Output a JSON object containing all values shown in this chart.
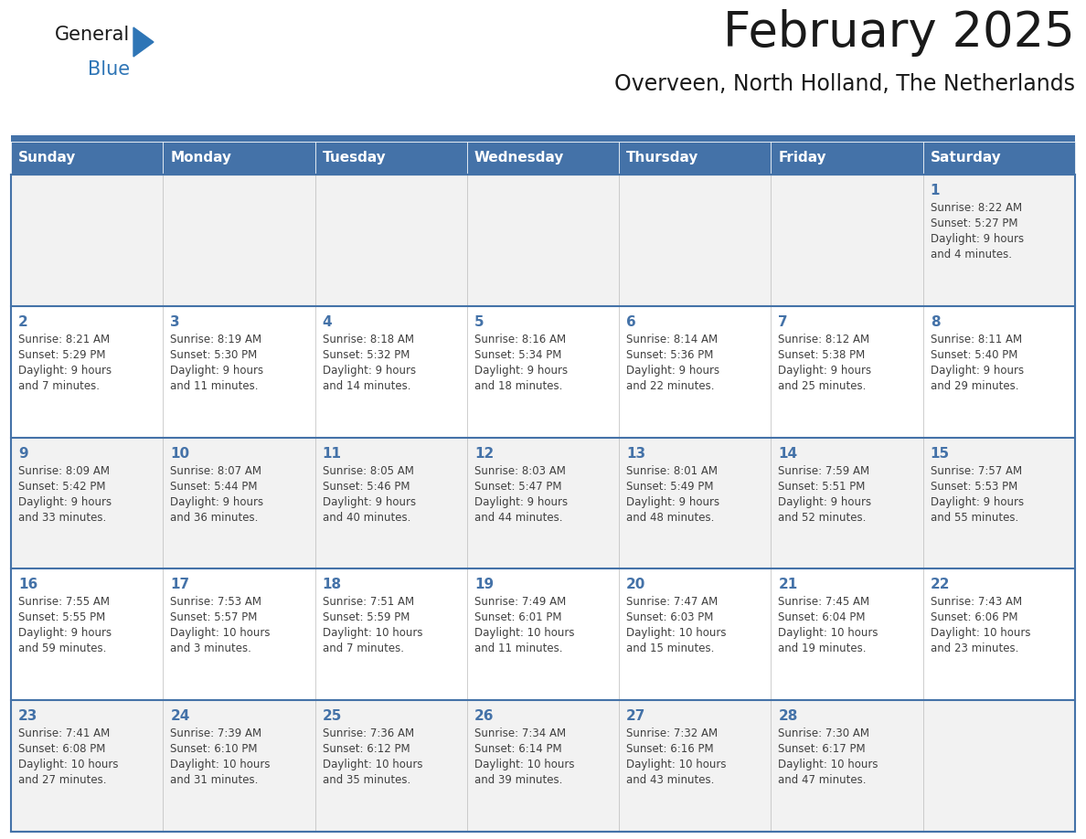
{
  "title": "February 2025",
  "subtitle": "Overveen, North Holland, The Netherlands",
  "days_of_week": [
    "Sunday",
    "Monday",
    "Tuesday",
    "Wednesday",
    "Thursday",
    "Friday",
    "Saturday"
  ],
  "header_bg_color": "#4472a8",
  "header_text_color": "#ffffff",
  "cell_bg_light": "#f2f2f2",
  "cell_bg_white": "#ffffff",
  "separator_color": "#4472a8",
  "title_color": "#1a1a1a",
  "subtitle_color": "#1a1a1a",
  "day_number_color": "#4472a8",
  "cell_text_color": "#404040",
  "logo_general_color": "#1a1a1a",
  "logo_blue_color": "#2E75B6",
  "weeks": [
    {
      "row": 0,
      "bg": "#f2f2f2",
      "days": [
        {
          "day": null,
          "col": 0
        },
        {
          "day": null,
          "col": 1
        },
        {
          "day": null,
          "col": 2
        },
        {
          "day": null,
          "col": 3
        },
        {
          "day": null,
          "col": 4
        },
        {
          "day": null,
          "col": 5
        },
        {
          "day": 1,
          "col": 6,
          "sunrise": "8:22 AM",
          "sunset": "5:27 PM",
          "daylight": "9 hours and 4 minutes."
        }
      ]
    },
    {
      "row": 1,
      "bg": "#ffffff",
      "days": [
        {
          "day": 2,
          "col": 0,
          "sunrise": "8:21 AM",
          "sunset": "5:29 PM",
          "daylight": "9 hours and 7 minutes."
        },
        {
          "day": 3,
          "col": 1,
          "sunrise": "8:19 AM",
          "sunset": "5:30 PM",
          "daylight": "9 hours and 11 minutes."
        },
        {
          "day": 4,
          "col": 2,
          "sunrise": "8:18 AM",
          "sunset": "5:32 PM",
          "daylight": "9 hours and 14 minutes."
        },
        {
          "day": 5,
          "col": 3,
          "sunrise": "8:16 AM",
          "sunset": "5:34 PM",
          "daylight": "9 hours and 18 minutes."
        },
        {
          "day": 6,
          "col": 4,
          "sunrise": "8:14 AM",
          "sunset": "5:36 PM",
          "daylight": "9 hours and 22 minutes."
        },
        {
          "day": 7,
          "col": 5,
          "sunrise": "8:12 AM",
          "sunset": "5:38 PM",
          "daylight": "9 hours and 25 minutes."
        },
        {
          "day": 8,
          "col": 6,
          "sunrise": "8:11 AM",
          "sunset": "5:40 PM",
          "daylight": "9 hours and 29 minutes."
        }
      ]
    },
    {
      "row": 2,
      "bg": "#f2f2f2",
      "days": [
        {
          "day": 9,
          "col": 0,
          "sunrise": "8:09 AM",
          "sunset": "5:42 PM",
          "daylight": "9 hours and 33 minutes."
        },
        {
          "day": 10,
          "col": 1,
          "sunrise": "8:07 AM",
          "sunset": "5:44 PM",
          "daylight": "9 hours and 36 minutes."
        },
        {
          "day": 11,
          "col": 2,
          "sunrise": "8:05 AM",
          "sunset": "5:46 PM",
          "daylight": "9 hours and 40 minutes."
        },
        {
          "day": 12,
          "col": 3,
          "sunrise": "8:03 AM",
          "sunset": "5:47 PM",
          "daylight": "9 hours and 44 minutes."
        },
        {
          "day": 13,
          "col": 4,
          "sunrise": "8:01 AM",
          "sunset": "5:49 PM",
          "daylight": "9 hours and 48 minutes."
        },
        {
          "day": 14,
          "col": 5,
          "sunrise": "7:59 AM",
          "sunset": "5:51 PM",
          "daylight": "9 hours and 52 minutes."
        },
        {
          "day": 15,
          "col": 6,
          "sunrise": "7:57 AM",
          "sunset": "5:53 PM",
          "daylight": "9 hours and 55 minutes."
        }
      ]
    },
    {
      "row": 3,
      "bg": "#ffffff",
      "days": [
        {
          "day": 16,
          "col": 0,
          "sunrise": "7:55 AM",
          "sunset": "5:55 PM",
          "daylight": "9 hours and 59 minutes."
        },
        {
          "day": 17,
          "col": 1,
          "sunrise": "7:53 AM",
          "sunset": "5:57 PM",
          "daylight": "10 hours and 3 minutes."
        },
        {
          "day": 18,
          "col": 2,
          "sunrise": "7:51 AM",
          "sunset": "5:59 PM",
          "daylight": "10 hours and 7 minutes."
        },
        {
          "day": 19,
          "col": 3,
          "sunrise": "7:49 AM",
          "sunset": "6:01 PM",
          "daylight": "10 hours and 11 minutes."
        },
        {
          "day": 20,
          "col": 4,
          "sunrise": "7:47 AM",
          "sunset": "6:03 PM",
          "daylight": "10 hours and 15 minutes."
        },
        {
          "day": 21,
          "col": 5,
          "sunrise": "7:45 AM",
          "sunset": "6:04 PM",
          "daylight": "10 hours and 19 minutes."
        },
        {
          "day": 22,
          "col": 6,
          "sunrise": "7:43 AM",
          "sunset": "6:06 PM",
          "daylight": "10 hours and 23 minutes."
        }
      ]
    },
    {
      "row": 4,
      "bg": "#f2f2f2",
      "days": [
        {
          "day": 23,
          "col": 0,
          "sunrise": "7:41 AM",
          "sunset": "6:08 PM",
          "daylight": "10 hours and 27 minutes."
        },
        {
          "day": 24,
          "col": 1,
          "sunrise": "7:39 AM",
          "sunset": "6:10 PM",
          "daylight": "10 hours and 31 minutes."
        },
        {
          "day": 25,
          "col": 2,
          "sunrise": "7:36 AM",
          "sunset": "6:12 PM",
          "daylight": "10 hours and 35 minutes."
        },
        {
          "day": 26,
          "col": 3,
          "sunrise": "7:34 AM",
          "sunset": "6:14 PM",
          "daylight": "10 hours and 39 minutes."
        },
        {
          "day": 27,
          "col": 4,
          "sunrise": "7:32 AM",
          "sunset": "6:16 PM",
          "daylight": "10 hours and 43 minutes."
        },
        {
          "day": 28,
          "col": 5,
          "sunrise": "7:30 AM",
          "sunset": "6:17 PM",
          "daylight": "10 hours and 47 minutes."
        },
        {
          "day": null,
          "col": 6
        }
      ]
    }
  ]
}
